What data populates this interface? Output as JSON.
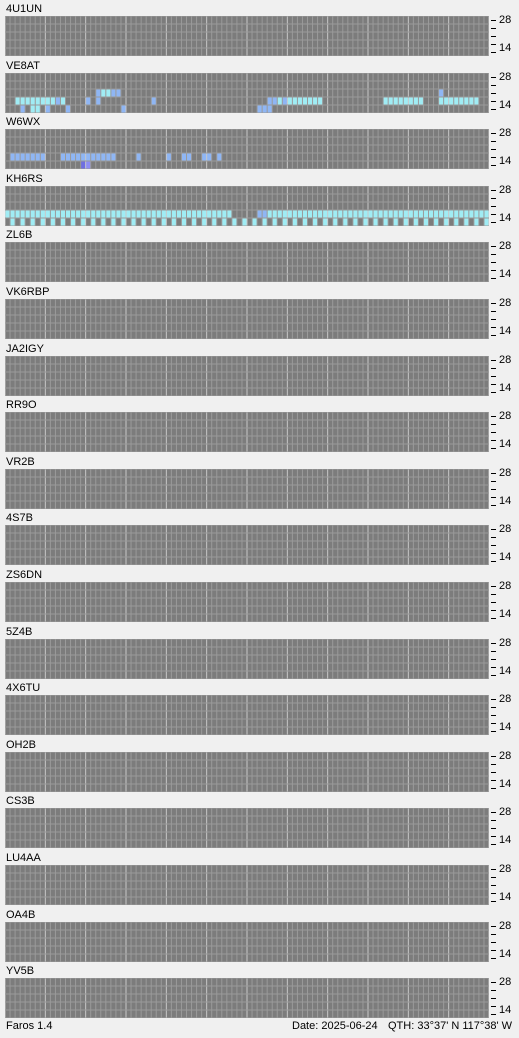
{
  "app": {
    "version": "Faros 1.4"
  },
  "status": {
    "date": "Date: 2025-06-24",
    "qth": "QTH: 33°37' N  117°38' W"
  },
  "axis": {
    "top_label": "28",
    "bottom_label": "14"
  },
  "grid": {
    "columns": 96,
    "rows": 5,
    "bands": [
      "28",
      "24",
      "21",
      "18",
      "14"
    ]
  },
  "colors": {
    "empty": "#7c7c7c",
    "grid_line": "#9a9a9a",
    "hour_line": "#c8c8c8",
    "levels": [
      "#7c7c7c",
      "#6f6fe0",
      "#8e8ef4",
      "#8fb6f4",
      "#a0ecf4",
      "#9a9a9a"
    ]
  },
  "stations": [
    {
      "callsign": "4U1UN",
      "rows": []
    },
    {
      "callsign": "VE8AT",
      "rows": [
        "000000000000000000000000000000000000000000000000000000000000000000000000000000000000000000000000",
        "000000000000000000000000000000000000000000000000000000000000000000000000000000000000000000000000",
        "000000000000000000344330000000000000000000000000000000000000000000000000000000000000003000000000",
        "004444444434000030300000000003000000000000000000000033434444444000000000000444444440004444444400",
        "000304403000300000000003000000000000000000000000003330000000000000000000000000000000000000000000"
      ]
    },
    {
      "callsign": "W6WX",
      "rows": [
        "000000000000000000000000000000000000000000000000000000000000000000000000000000000000000000000000",
        "000000000000000000000000000000000000000000000000000000000000000000000000000000000000000000000000",
        "000000000000000000000000000000000000000000000000000000000000000000000000000000000000000000000000",
        "033333330003333333333300003000003003300330300000000000000000000000000000000000000000000000000000",
        "000000000000000120000000000000000000000000000000000000000000000000000000000000000000000000000000"
      ]
    },
    {
      "callsign": "KH6RS",
      "rows": [
        "000000000000000000000000000000000000000000000000000000000000000000000000000000000000000000000000",
        "000000000000000000000000000000000000000000000000000000000000000000000000000000000000000000000000",
        "000000000000000000000000000000000000000000000000000000000000000000000000000000000000000000000000",
        "444444444444444444444444444444444444444444444000003344444444444444444444444444444444444444444444",
        "040404040404040404040404040404040404040404040404040404040404040404040404040404040404040404040404"
      ]
    },
    {
      "callsign": "ZL6B",
      "rows": [
        "000000000000000000000000000000000000000000000000000000000000000000000000000000000000000000000000",
        "000000000000000000000000000000000000000000000000000000000000000000000000000000000000000000000000",
        "000000000000000000000000000000000000000000000000000000000000000000000000000000000000000000000000",
        "000000000000000000000000000000000000000000000000000000000000000000000000000000000000000000000000",
        "000000000000000000000000000000000000000000000000000000000000000000000000000000000000000000000000"
      ]
    },
    {
      "callsign": "VK6RBP",
      "rows": []
    },
    {
      "callsign": "JA2IGY",
      "rows": []
    },
    {
      "callsign": "RR9O",
      "rows": []
    },
    {
      "callsign": "VR2B",
      "rows": []
    },
    {
      "callsign": "4S7B",
      "rows": []
    },
    {
      "callsign": "ZS6DN",
      "rows": []
    },
    {
      "callsign": "5Z4B",
      "rows": []
    },
    {
      "callsign": "4X6TU",
      "rows": []
    },
    {
      "callsign": "OH2B",
      "rows": []
    },
    {
      "callsign": "CS3B",
      "rows": []
    },
    {
      "callsign": "LU4AA",
      "rows": []
    },
    {
      "callsign": "OA4B",
      "rows": []
    },
    {
      "callsign": "YV5B",
      "rows": []
    }
  ]
}
